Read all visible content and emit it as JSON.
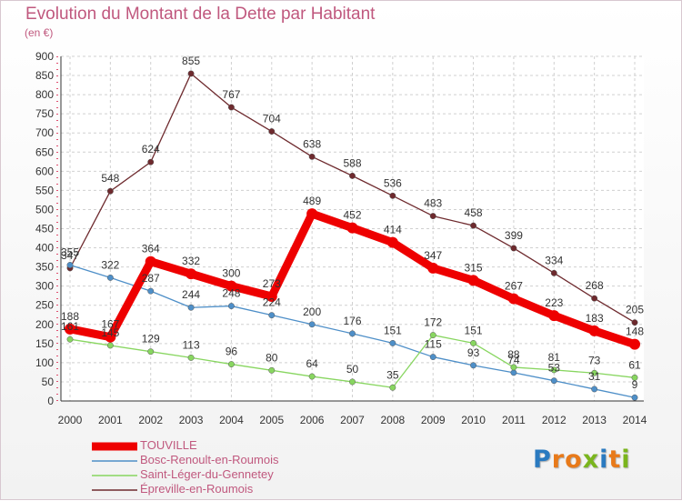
{
  "title": "Evolution du Montant de la Dette par Habitant",
  "unit_label": "(en €)",
  "brand": {
    "letters": [
      "P",
      "r",
      "o",
      "x",
      "i",
      "t",
      "i"
    ],
    "colors": [
      "#2a7ac0",
      "#e87a1a",
      "#e87a1a",
      "#7ab51d",
      "#2a7ac0",
      "#e87a1a",
      "#7ab51d"
    ]
  },
  "chart_data": {
    "type": "line",
    "title": "Evolution du Montant de la Dette par Habitant",
    "ylabel": "(en €)",
    "xlabel": "",
    "x": [
      "2000",
      "2001",
      "2002",
      "2003",
      "2004",
      "2005",
      "2006",
      "2007",
      "2008",
      "2009",
      "2010",
      "2011",
      "2012",
      "2013",
      "2014"
    ],
    "ylim": [
      0,
      900
    ],
    "yticks": [
      0,
      50,
      100,
      150,
      200,
      250,
      300,
      350,
      400,
      450,
      500,
      550,
      600,
      650,
      700,
      750,
      800,
      850,
      900
    ],
    "grid": true,
    "legend_position": "bottom-left",
    "series": [
      {
        "name": "TOUVILLE",
        "color": "#ee0000",
        "values": [
          188,
          167,
          364,
          332,
          300,
          273,
          489,
          452,
          414,
          347,
          315,
          267,
          223,
          183,
          148
        ]
      },
      {
        "name": "Bosc-Renoult-en-Roumois",
        "color": "#4e8fc8",
        "values": [
          355,
          322,
          287,
          244,
          248,
          224,
          200,
          176,
          151,
          115,
          93,
          74,
          53,
          31,
          9
        ]
      },
      {
        "name": "Saint-Léger-du-Gennetey",
        "color": "#88d660",
        "values": [
          161,
          145,
          129,
          113,
          96,
          80,
          64,
          50,
          35,
          172,
          151,
          88,
          81,
          73,
          61
        ]
      },
      {
        "name": "Épreville-en-Roumois",
        "color": "#6e2a2e",
        "values": [
          347,
          548,
          624,
          855,
          767,
          704,
          638,
          588,
          536,
          483,
          458,
          399,
          334,
          268,
          205
        ]
      }
    ]
  }
}
